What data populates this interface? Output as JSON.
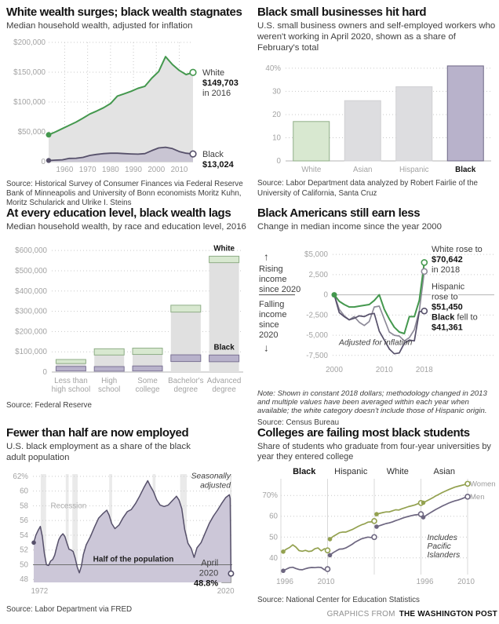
{
  "footer": {
    "prefix": "GRAPHICS FROM",
    "brand": "THE WASHINGTON POST"
  },
  "chart_data": [
    {
      "title": "White wealth surges; black wealth stagnates",
      "subtitle": "Median household wealth, adjusted for inflation",
      "source": "Source: Historical Survey of Consumer Finances via Federal Reserve Bank of Minneapolis and University of Bonn economists Moritz Kuhn, Moritz Schularick and Ulrike I. Steins",
      "type": "dual-area",
      "x": [
        1953,
        1956,
        1959,
        1962,
        1965,
        1968,
        1971,
        1974,
        1977,
        1980,
        1983,
        1986,
        1989,
        1992,
        1995,
        1998,
        2001,
        2004,
        2007,
        2010,
        2013,
        2016
      ],
      "series": [
        {
          "name": "White",
          "color": "#44984e",
          "fill": "#e3e3e3",
          "values": [
            45000,
            50000,
            55500,
            61000,
            66500,
            73000,
            80000,
            85000,
            90500,
            97500,
            110000,
            114000,
            118000,
            123000,
            126500,
            140000,
            151000,
            176000,
            163000,
            153000,
            146000,
            149703
          ]
        },
        {
          "name": "Black",
          "color": "#56506a",
          "fill": "#c9c5d3",
          "values": [
            2000,
            2600,
            3200,
            5500,
            5800,
            7200,
            10500,
            12200,
            13500,
            14200,
            14200,
            13600,
            13000,
            12600,
            13500,
            18500,
            23000,
            24200,
            22000,
            17000,
            14200,
            13024
          ]
        }
      ],
      "yticks": [
        {
          "v": 0,
          "label": "0"
        },
        {
          "v": 50000,
          "label": "$50,000"
        },
        {
          "v": 100000,
          "label": "$100,000"
        },
        {
          "v": 150000,
          "label": "$150,000"
        },
        {
          "v": 200000,
          "label": "$200,000"
        }
      ],
      "xticks": [
        1960,
        1970,
        1980,
        1990,
        2000,
        2010
      ],
      "xlim": [
        1953,
        2016
      ],
      "ylim": [
        0,
        200000
      ],
      "annotations": {
        "white": [
          "White",
          "$149,703",
          "in 2016"
        ],
        "black": [
          "Black",
          "$13,024"
        ]
      }
    },
    {
      "title": "Black small businesses hit hard",
      "subtitle": "U.S. small business owners and self-employed workers who weren't working in April 2020, shown as a share of February's total",
      "source": "Source: Labor Department data analyzed by Robert Fairlie of the University of California, Santa Cruz",
      "type": "bar",
      "categories": [
        "White",
        "Asian",
        "Hispanic",
        "Black"
      ],
      "values": [
        17,
        26,
        32,
        41
      ],
      "fills": [
        "#d8e8d0",
        "#dddde0",
        "#dddde0",
        "#b8b2cb"
      ],
      "strokes": [
        "#8fae87",
        "#d0d0d3",
        "#d0d0d3",
        "#6e6886"
      ],
      "yticks": [
        {
          "v": 0,
          "label": "0"
        },
        {
          "v": 10,
          "label": "10"
        },
        {
          "v": 20,
          "label": "20"
        },
        {
          "v": 30,
          "label": "30"
        },
        {
          "v": 40,
          "label": "40%"
        }
      ],
      "ylim": [
        0,
        42
      ],
      "emphasis": 3
    },
    {
      "title": "At every education level, black wealth lags",
      "subtitle": "Median household wealth, by race and education level, 2016",
      "source": "Source: Federal Reserve",
      "type": "range-bar",
      "categories": [
        [
          "Less than",
          "high school"
        ],
        [
          "High",
          "school"
        ],
        [
          "Some",
          "college"
        ],
        [
          "Bachelor's",
          "degree"
        ],
        [
          "Advanced",
          "degree"
        ]
      ],
      "white_top": [
        62000,
        115000,
        118000,
        330000,
        572000
      ],
      "white_bottom": [
        42000,
        84000,
        87000,
        296000,
        540000
      ],
      "black_top": [
        28000,
        27000,
        30000,
        85000,
        84000
      ],
      "black_bottom": [
        5000,
        4000,
        5000,
        52000,
        51000
      ],
      "column_fill": "#e0e0e0",
      "white_fill": "#d8e8d0",
      "white_stroke": "#8fae87",
      "black_fill": "#b8b2cb",
      "black_stroke": "#7b7394",
      "yticks": [
        {
          "v": 0,
          "label": "0"
        },
        {
          "v": 100000,
          "label": "$100,000"
        },
        {
          "v": 200000,
          "label": "$200,000"
        },
        {
          "v": 300000,
          "label": "$300,000"
        },
        {
          "v": 400000,
          "label": "$400,000"
        },
        {
          "v": 500000,
          "label": "$500,000"
        },
        {
          "v": 600000,
          "label": "$600,000"
        }
      ],
      "ylim": [
        0,
        620000
      ],
      "annotations": {
        "white_label": "White",
        "black_label": "Black"
      }
    },
    {
      "title": "Black Americans still earn less",
      "subtitle": "Change in median income since the year 2000",
      "note": "Note: Shown in constant 2018 dollars; methodology changed in 2013 and multiple values have been averaged within each year when available; the white category doesn't include those of Hispanic origin.",
      "source": "Source: Census Bureau",
      "type": "multi-line",
      "x": [
        2000,
        2001,
        2002,
        2003,
        2004,
        2005,
        2006,
        2007,
        2008,
        2009,
        2010,
        2011,
        2012,
        2013,
        2014,
        2015,
        2016,
        2017,
        2018
      ],
      "series": [
        {
          "name": "Hispanic",
          "color": "#8d8a98",
          "values": [
            0,
            -1800,
            -2600,
            -3100,
            -2700,
            -3400,
            -3800,
            -3300,
            -1500,
            -1400,
            -3000,
            -4600,
            -5000,
            -5100,
            -5700,
            -5300,
            -4300,
            -2000,
            2900
          ]
        },
        {
          "name": "Black",
          "color": "#56506a",
          "values": [
            0,
            -2200,
            -2700,
            -3100,
            -2900,
            -2600,
            -2700,
            -2400,
            -2300,
            -4500,
            -5600,
            -6700,
            -7300,
            -7200,
            -6000,
            -5600,
            -5700,
            -2100,
            -2000
          ]
        },
        {
          "name": "White",
          "color": "#44984e",
          "values": [
            0,
            -800,
            -1200,
            -1500,
            -1500,
            -1400,
            -1300,
            -1200,
            -700,
            0,
            -1800,
            -3000,
            -4000,
            -4600,
            -4800,
            -2700,
            -2700,
            -700,
            4000
          ]
        }
      ],
      "yticks": [
        {
          "v": 5000,
          "label": "$5,000"
        },
        {
          "v": 2500,
          "label": "2,500"
        },
        {
          "v": 0,
          "label": "0"
        },
        {
          "v": -2500,
          "label": "-2,500"
        },
        {
          "v": -5000,
          "label": "-5,000"
        },
        {
          "v": -7500,
          "label": "-7,500"
        }
      ],
      "xticks": [
        2000,
        2010,
        2018
      ],
      "xlim": [
        2000,
        2018.5
      ],
      "ylim": [
        -8200,
        5600
      ],
      "annotations": {
        "arrow_up": "↑",
        "arrow_down": "↓",
        "rising": [
          "Rising",
          "income",
          "since 2020"
        ],
        "falling": [
          "Falling",
          "income",
          "since",
          "2020"
        ],
        "inflation": "Adjusted for inflation",
        "right_labels": [
          {
            "y": 5300,
            "lines": [
              [
                [
                  "White rose to",
                  0
                ]
              ],
              [
                [
                  "$70,642",
                  1
                ]
              ],
              [
                [
                  "in 2018",
                  0
                ]
              ]
            ]
          },
          {
            "y": 700,
            "lines": [
              [
                [
                  "Hispanic",
                  0
                ]
              ],
              [
                [
                  "rose to",
                  0
                ]
              ],
              [
                [
                  "$51,450",
                  1
                ]
              ]
            ]
          },
          {
            "y": -3100,
            "lines": [
              [
                [
                  "Black",
                  1
                ],
                [
                  " fell to",
                  0
                ]
              ],
              [
                [
                  "$41,361",
                  1
                ]
              ]
            ]
          }
        ]
      }
    },
    {
      "title": "Fewer than half are now employed",
      "subtitle": "U.S. black employment as a share of the black adult population",
      "source": "Source: Labor Department via FRED",
      "type": "area-trend",
      "points": [
        [
          1972.2,
          53.0
        ],
        [
          1972.7,
          54.0
        ],
        [
          1973.2,
          54.6
        ],
        [
          1973.8,
          55.2
        ],
        [
          1974.3,
          53.8
        ],
        [
          1974.8,
          51.5
        ],
        [
          1975.3,
          50.0
        ],
        [
          1975.8,
          49.9
        ],
        [
          1976.3,
          50.5
        ],
        [
          1976.8,
          50.7
        ],
        [
          1977.3,
          51.3
        ],
        [
          1977.8,
          52.4
        ],
        [
          1978.3,
          53.4
        ],
        [
          1978.8,
          53.9
        ],
        [
          1979.3,
          54.2
        ],
        [
          1979.8,
          53.8
        ],
        [
          1980.3,
          52.9
        ],
        [
          1980.8,
          52.1
        ],
        [
          1981.3,
          52.0
        ],
        [
          1981.8,
          51.8
        ],
        [
          1982.3,
          50.9
        ],
        [
          1982.8,
          49.7
        ],
        [
          1983.3,
          48.9
        ],
        [
          1983.8,
          49.8
        ],
        [
          1984.3,
          51.4
        ],
        [
          1985,
          52.7
        ],
        [
          1986,
          53.8
        ],
        [
          1987,
          55.1
        ],
        [
          1988,
          56.3
        ],
        [
          1989,
          56.9
        ],
        [
          1990,
          57.4
        ],
        [
          1990.6,
          56.7
        ],
        [
          1991.2,
          55.6
        ],
        [
          1992,
          54.9
        ],
        [
          1993,
          55.4
        ],
        [
          1994,
          56.4
        ],
        [
          1995,
          57.2
        ],
        [
          1996,
          57.5
        ],
        [
          1997,
          58.3
        ],
        [
          1998,
          59.3
        ],
        [
          1999,
          60.4
        ],
        [
          2000,
          61.4
        ],
        [
          2000.6,
          60.7
        ],
        [
          2001.4,
          59.9
        ],
        [
          2002.2,
          58.8
        ],
        [
          2003,
          58.1
        ],
        [
          2004,
          57.9
        ],
        [
          2005,
          58.1
        ],
        [
          2006,
          58.7
        ],
        [
          2007,
          59.3
        ],
        [
          2007.6,
          58.8
        ],
        [
          2008.3,
          57.6
        ],
        [
          2009,
          54.8
        ],
        [
          2009.8,
          52.9
        ],
        [
          2010.6,
          52.2
        ],
        [
          2011.3,
          51.0
        ],
        [
          2012,
          52.3
        ],
        [
          2013,
          53.0
        ],
        [
          2014,
          54.3
        ],
        [
          2015,
          55.6
        ],
        [
          2016,
          56.6
        ],
        [
          2017,
          57.4
        ],
        [
          2018,
          58.3
        ],
        [
          2019,
          59.1
        ],
        [
          2019.9,
          59.5
        ],
        [
          2020.1,
          59.0
        ],
        [
          2020.3,
          48.8
        ]
      ],
      "recessions": [
        [
          1973.9,
          1975.2
        ],
        [
          1980.0,
          1980.7
        ],
        [
          1981.6,
          1982.9
        ],
        [
          1990.6,
          1991.3
        ],
        [
          2001.2,
          2001.9
        ],
        [
          2007.9,
          2009.5
        ],
        [
          2020.05,
          2020.45
        ]
      ],
      "line_color": "#56506a",
      "fill": "#ccc7d8",
      "recession_fill": "#eaeaea",
      "yticks": [
        48,
        50,
        52,
        54,
        56,
        58,
        60,
        62
      ],
      "xlim": [
        1972,
        2020.6
      ],
      "ylim": [
        47.6,
        62.3
      ],
      "xlabels": [
        "1972",
        "2020"
      ],
      "annotations": {
        "recession": "Recession",
        "seasonal": [
          "Seasonally",
          "adjusted"
        ],
        "half": "Half of the population",
        "end_label": [
          "April",
          "2020",
          "48.8%"
        ],
        "end_value": [
          2020.3,
          48.8
        ]
      }
    },
    {
      "title": "Colleges are failing most black students",
      "subtitle": "Share of students who graduate from four-year universities by year they entered college",
      "source": "Source: National Center for Education Statistics",
      "type": "small-multiples",
      "x_start": 1996,
      "x_end": 2010,
      "panels": [
        {
          "label": "Black",
          "bold": true,
          "women": [
            43.0,
            44.2,
            45.0,
            46.3,
            45.2,
            43.5,
            43.2,
            43.6,
            43.1,
            43.3,
            44.4,
            44.8,
            43.4,
            44.4,
            43.6
          ],
          "men": [
            33.8,
            34.6,
            35.3,
            35.5,
            34.9,
            34.4,
            34.3,
            34.8,
            35.2,
            35.4,
            35.3,
            35.5,
            35.4,
            34.3,
            34.6
          ]
        },
        {
          "label": "Hispanic",
          "bold": false,
          "women": [
            49.0,
            50.3,
            51.2,
            52.1,
            52.4,
            52.4,
            53.0,
            53.6,
            54.4,
            55.2,
            55.9,
            56.4,
            57.2,
            57.3,
            57.7
          ],
          "men": [
            41.3,
            42.5,
            43.4,
            44.2,
            44.3,
            44.8,
            45.6,
            46.5,
            47.6,
            48.4,
            49.2,
            49.6,
            50.0,
            49.8,
            50.0
          ]
        },
        {
          "label": "White",
          "bold": false,
          "women": [
            61.0,
            61.4,
            61.8,
            62.1,
            62.1,
            62.6,
            63.1,
            63.0,
            63.6,
            64.1,
            64.6,
            65.0,
            65.4,
            66.0,
            66.4
          ],
          "men": [
            55.0,
            55.5,
            56.0,
            56.5,
            56.8,
            57.3,
            57.9,
            58.4,
            59.0,
            59.5,
            59.9,
            60.3,
            60.6,
            60.8,
            61.0
          ]
        },
        {
          "label": "Asian",
          "bold": false,
          "women": [
            66.5,
            67.3,
            68.1,
            68.9,
            69.8,
            70.6,
            71.4,
            72.1,
            72.8,
            73.4,
            74.0,
            74.4,
            74.8,
            75.2,
            75.6
          ],
          "men": [
            59.5,
            60.5,
            61.5,
            62.4,
            63.3,
            64.1,
            64.9,
            65.6,
            66.3,
            66.9,
            67.4,
            67.8,
            68.3,
            68.9,
            69.4
          ]
        }
      ],
      "women_color": "#93a14f",
      "men_color": "#6d6680",
      "yticks": [
        {
          "v": 40,
          "label": "40"
        },
        {
          "v": 50,
          "label": "50"
        },
        {
          "v": 60,
          "label": "60"
        },
        {
          "v": 70,
          "label": "70%"
        }
      ],
      "ylim": [
        32,
        78
      ],
      "annotations": {
        "legend_women": "Women",
        "legend_men": "Men",
        "includes": [
          "Includes",
          "Pacific",
          "Islanders"
        ],
        "xlabels": [
          "1996",
          "2010"
        ]
      }
    }
  ]
}
